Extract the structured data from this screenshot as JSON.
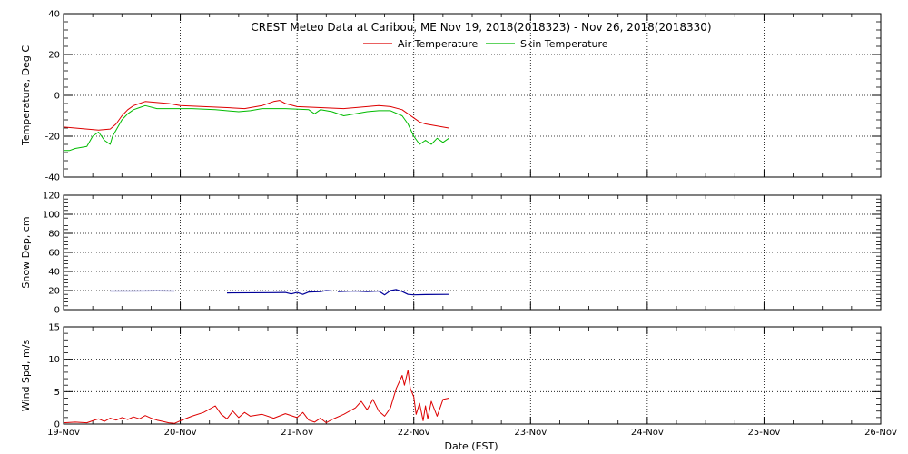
{
  "title": "CREST Meteo Data at Caribou, ME   Nov 19, 2018(2018323) - Nov 26, 2018(2018330)",
  "x_axis": {
    "label": "Date (EST)",
    "range": [
      "2018-11-19",
      "2018-11-26"
    ],
    "tick_labels": [
      "19-Nov",
      "20-Nov",
      "21-Nov",
      "22-Nov",
      "23-Nov",
      "24-Nov",
      "25-Nov",
      "26-Nov"
    ]
  },
  "chart_data": [
    {
      "type": "line",
      "ylabel": "Temperature, Deg C",
      "ylim": [
        -40,
        40
      ],
      "y_ticks": [
        "-40",
        "-20",
        "0",
        "20",
        "40"
      ],
      "grid": true,
      "legend_placement": "top-center",
      "series": [
        {
          "name": "Air Temperature",
          "color": "#dd0000",
          "points": [
            [
              0,
              -15.5
            ],
            [
              0.1,
              -16
            ],
            [
              0.2,
              -16.5
            ],
            [
              0.3,
              -17
            ],
            [
              0.4,
              -16.5
            ],
            [
              0.45,
              -14
            ],
            [
              0.5,
              -10
            ],
            [
              0.55,
              -7
            ],
            [
              0.6,
              -5
            ],
            [
              0.65,
              -4
            ],
            [
              0.7,
              -3
            ],
            [
              0.8,
              -3.5
            ],
            [
              0.9,
              -4
            ],
            [
              1.0,
              -5
            ],
            [
              1.2,
              -5.5
            ],
            [
              1.4,
              -6
            ],
            [
              1.55,
              -6.5
            ],
            [
              1.7,
              -5
            ],
            [
              1.8,
              -3
            ],
            [
              1.85,
              -2.5
            ],
            [
              1.9,
              -4
            ],
            [
              2.0,
              -5.5
            ],
            [
              2.2,
              -6
            ],
            [
              2.4,
              -6.5
            ],
            [
              2.5,
              -6
            ],
            [
              2.6,
              -5.5
            ],
            [
              2.7,
              -5
            ],
            [
              2.8,
              -5.5
            ],
            [
              2.9,
              -7
            ],
            [
              2.95,
              -9
            ],
            [
              3.0,
              -11
            ],
            [
              3.05,
              -13
            ],
            [
              3.1,
              -14
            ],
            [
              3.2,
              -15
            ],
            [
              3.3,
              -16
            ]
          ]
        },
        {
          "name": "Skin Temperature",
          "color": "#00bb00",
          "points": [
            [
              0,
              -27
            ],
            [
              0.05,
              -27
            ],
            [
              0.1,
              -26
            ],
            [
              0.2,
              -25
            ],
            [
              0.25,
              -20
            ],
            [
              0.3,
              -18
            ],
            [
              0.35,
              -22
            ],
            [
              0.4,
              -24
            ],
            [
              0.42,
              -20
            ],
            [
              0.45,
              -17
            ],
            [
              0.5,
              -12
            ],
            [
              0.55,
              -9
            ],
            [
              0.6,
              -7
            ],
            [
              0.65,
              -6
            ],
            [
              0.7,
              -5
            ],
            [
              0.8,
              -6.5
            ],
            [
              0.9,
              -6.5
            ],
            [
              1.1,
              -6.5
            ],
            [
              1.3,
              -7
            ],
            [
              1.5,
              -8
            ],
            [
              1.6,
              -7.5
            ],
            [
              1.7,
              -6.5
            ],
            [
              1.9,
              -6.5
            ],
            [
              2.1,
              -7
            ],
            [
              2.15,
              -9
            ],
            [
              2.2,
              -7
            ],
            [
              2.3,
              -8
            ],
            [
              2.4,
              -10
            ],
            [
              2.5,
              -9
            ],
            [
              2.6,
              -8
            ],
            [
              2.7,
              -7.5
            ],
            [
              2.8,
              -7.5
            ],
            [
              2.9,
              -10
            ],
            [
              2.95,
              -14
            ],
            [
              3.0,
              -20
            ],
            [
              3.05,
              -24
            ],
            [
              3.1,
              -22
            ],
            [
              3.15,
              -24
            ],
            [
              3.2,
              -21
            ],
            [
              3.25,
              -23
            ],
            [
              3.3,
              -21
            ]
          ]
        }
      ]
    },
    {
      "type": "line",
      "ylabel": "Snow Dep, cm",
      "ylim": [
        0,
        120
      ],
      "y_ticks": [
        "0",
        "20",
        "40",
        "60",
        "80",
        "100",
        "120"
      ],
      "grid": true,
      "series": [
        {
          "color": "#000099",
          "segments": [
            [
              [
                0.4,
                19.5
              ],
              [
                0.6,
                19.5
              ],
              [
                0.8,
                19.6
              ],
              [
                0.95,
                19.5
              ]
            ],
            [
              [
                1.4,
                17.5
              ],
              [
                1.8,
                17.8
              ],
              [
                1.9,
                18
              ],
              [
                1.95,
                16.5
              ],
              [
                2.0,
                18
              ],
              [
                2.05,
                16
              ],
              [
                2.1,
                18.5
              ],
              [
                2.2,
                19
              ],
              [
                2.25,
                20
              ],
              [
                2.3,
                19.5
              ]
            ],
            [
              [
                2.35,
                19
              ],
              [
                2.5,
                19.5
              ],
              [
                2.6,
                19
              ],
              [
                2.7,
                19.5
              ],
              [
                2.75,
                15.5
              ],
              [
                2.8,
                20
              ],
              [
                2.85,
                21
              ],
              [
                2.9,
                19
              ],
              [
                2.95,
                16
              ],
              [
                3.0,
                15.5
              ],
              [
                3.1,
                15.8
              ],
              [
                3.3,
                16
              ]
            ]
          ]
        }
      ]
    },
    {
      "type": "line",
      "ylabel": "Wind Spd, m/s",
      "ylim": [
        0,
        15
      ],
      "y_ticks": [
        "0",
        "5",
        "10",
        "15"
      ],
      "grid": true,
      "series": [
        {
          "color": "#dd0000",
          "points": [
            [
              0,
              0.2
            ],
            [
              0.1,
              0.3
            ],
            [
              0.2,
              0.2
            ],
            [
              0.25,
              0.5
            ],
            [
              0.3,
              0.8
            ],
            [
              0.35,
              0.4
            ],
            [
              0.4,
              0.9
            ],
            [
              0.45,
              0.6
            ],
            [
              0.5,
              1.0
            ],
            [
              0.55,
              0.7
            ],
            [
              0.6,
              1.1
            ],
            [
              0.65,
              0.8
            ],
            [
              0.7,
              1.3
            ],
            [
              0.75,
              0.9
            ],
            [
              0.8,
              0.6
            ],
            [
              0.85,
              0.4
            ],
            [
              0.9,
              0.2
            ],
            [
              0.95,
              0.1
            ],
            [
              1.0,
              0.5
            ],
            [
              1.1,
              1.2
            ],
            [
              1.2,
              1.8
            ],
            [
              1.3,
              2.8
            ],
            [
              1.35,
              1.5
            ],
            [
              1.4,
              0.8
            ],
            [
              1.45,
              2.0
            ],
            [
              1.5,
              1.0
            ],
            [
              1.55,
              1.8
            ],
            [
              1.6,
              1.2
            ],
            [
              1.7,
              1.5
            ],
            [
              1.8,
              0.9
            ],
            [
              1.9,
              1.6
            ],
            [
              2.0,
              1.0
            ],
            [
              2.05,
              1.8
            ],
            [
              2.1,
              0.6
            ],
            [
              2.15,
              0.3
            ],
            [
              2.2,
              0.9
            ],
            [
              2.25,
              0.2
            ],
            [
              2.3,
              0.7
            ],
            [
              2.4,
              1.5
            ],
            [
              2.5,
              2.5
            ],
            [
              2.55,
              3.5
            ],
            [
              2.6,
              2.2
            ],
            [
              2.65,
              3.8
            ],
            [
              2.7,
              2.0
            ],
            [
              2.75,
              1.2
            ],
            [
              2.8,
              2.5
            ],
            [
              2.85,
              5.5
            ],
            [
              2.9,
              7.5
            ],
            [
              2.92,
              6
            ],
            [
              2.95,
              8.3
            ],
            [
              2.97,
              5.5
            ],
            [
              3.0,
              4.2
            ],
            [
              3.02,
              1.5
            ],
            [
              3.05,
              3.2
            ],
            [
              3.08,
              0.5
            ],
            [
              3.1,
              2.8
            ],
            [
              3.12,
              0.8
            ],
            [
              3.15,
              3.5
            ],
            [
              3.2,
              1.2
            ],
            [
              3.25,
              3.8
            ],
            [
              3.3,
              4.0
            ]
          ]
        }
      ]
    }
  ]
}
